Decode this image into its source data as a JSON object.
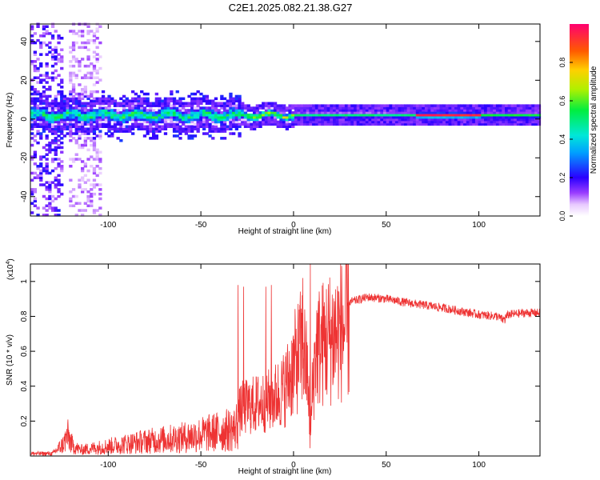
{
  "title": "C2E1.2025.082.21.38.G27",
  "colors": {
    "snr_line": "#ee3333",
    "axis": "#000000",
    "background": "#ffffff"
  },
  "chart_data": [
    {
      "type": "heatmap",
      "name": "spectrogram",
      "xlabel": "Height of straight line (km)",
      "ylabel": "Frequency (Hz)",
      "xlim": [
        -142,
        133
      ],
      "ylim": [
        -50,
        49
      ],
      "xticks": [
        -100,
        -50,
        0,
        50,
        100
      ],
      "yticks": [
        -40,
        -20,
        0,
        20,
        40
      ],
      "colorbar": {
        "label": "Normalized spectral amplitude",
        "range": [
          0,
          1
        ],
        "ticks": [
          0.0,
          0.2,
          0.4,
          0.6,
          0.8
        ],
        "tick_labels": [
          "0.0",
          "0.2",
          "0.4",
          "0.6",
          "0.8"
        ]
      },
      "band_centre_hz": 1.5,
      "band_segments": [
        {
          "x0": -142,
          "x1": -30,
          "halfwidth_hz": 5,
          "peak_amplitude": 0.45
        },
        {
          "x0": -30,
          "x1": 0,
          "halfwidth_hz": 3,
          "peak_amplitude": 0.6
        },
        {
          "x0": 0,
          "x1": 65,
          "halfwidth_hz": 2,
          "peak_amplitude": 0.5
        },
        {
          "x0": 65,
          "x1": 100,
          "halfwidth_hz": 2,
          "peak_amplitude": 0.95
        },
        {
          "x0": 100,
          "x1": 133,
          "halfwidth_hz": 2,
          "peak_amplitude": 0.55
        }
      ],
      "noise_columns": [
        {
          "x0": -142,
          "x1": -126,
          "amplitude": 0.15
        },
        {
          "x0": -122,
          "x1": -105,
          "amplitude": 0.08
        }
      ]
    },
    {
      "type": "line",
      "name": "snr",
      "xlabel": "Height of straight line (km)",
      "ylabel": "SNR (10 * v/v)",
      "scale_label": "(x10",
      "scale_exponent": "4",
      "xlim": [
        -142,
        133
      ],
      "ylim": [
        0,
        1.1
      ],
      "xticks": [
        -100,
        -50,
        0,
        50,
        100
      ],
      "yticks": [
        0.2,
        0.4,
        0.6,
        0.8,
        1.0
      ],
      "ytick_labels": [
        "0.2",
        "0.4",
        "0.6",
        "0.8",
        "1"
      ],
      "series": [
        {
          "name": "SNR",
          "envelope_x": [
            -142,
            -130,
            -124,
            -122,
            -119,
            -115,
            -100,
            -80,
            -60,
            -40,
            -32,
            -28,
            -20,
            -12,
            -5,
            0,
            5,
            8,
            9,
            10,
            12,
            15,
            20,
            30,
            40,
            50,
            60,
            80,
            100,
            110,
            113,
            116,
            125,
            133
          ],
          "envelope_y": [
            0.02,
            0.02,
            0.1,
            0.17,
            0.08,
            0.05,
            0.08,
            0.12,
            0.15,
            0.2,
            0.22,
            0.32,
            0.35,
            0.38,
            0.45,
            0.6,
            0.75,
            0.5,
            0.05,
            0.4,
            0.72,
            0.75,
            0.8,
            0.88,
            0.91,
            0.9,
            0.88,
            0.85,
            0.81,
            0.8,
            0.78,
            0.81,
            0.82,
            0.82
          ],
          "spikes": [
            {
              "x": -30,
              "y": 0.98
            },
            {
              "x": -27,
              "y": 0.97
            },
            {
              "x": -15,
              "y": 0.97
            },
            {
              "x": -12,
              "y": 0.98
            },
            {
              "x": 9,
              "y": 1.1
            },
            {
              "x": 5,
              "y": 1.02
            },
            {
              "x": 114,
              "y": 0.76
            }
          ]
        }
      ]
    }
  ]
}
